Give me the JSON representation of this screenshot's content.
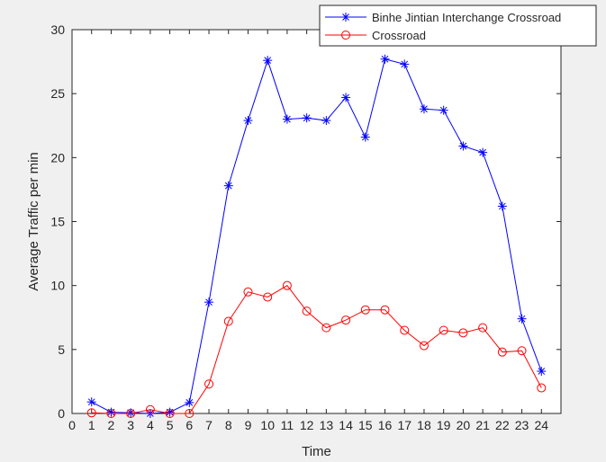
{
  "chart_data": {
    "type": "line",
    "xlabel": "Time",
    "ylabel": "Average Traffic per min",
    "xlim": [
      0,
      25
    ],
    "ylim": [
      0,
      30
    ],
    "xticks": [
      "0",
      "1",
      "2",
      "3",
      "4",
      "5",
      "6",
      "7",
      "8",
      "9",
      "10",
      "11",
      "12",
      "13",
      "14",
      "15",
      "16",
      "17",
      "18",
      "19",
      "20",
      "21",
      "22",
      "23",
      "24"
    ],
    "yticks": [
      "0",
      "5",
      "10",
      "15",
      "20",
      "25",
      "30"
    ],
    "grid": false,
    "legend_position": "top-right",
    "x": [
      1,
      2,
      3,
      4,
      5,
      6,
      7,
      8,
      9,
      10,
      11,
      12,
      13,
      14,
      15,
      16,
      17,
      18,
      19,
      20,
      21,
      22,
      23,
      24
    ],
    "series": [
      {
        "name": "Binhe Jintian Interchange Crossroad",
        "color": "#0000ff",
        "marker": "asterisk",
        "values": [
          0.9,
          0.1,
          0.05,
          0.0,
          0.1,
          0.85,
          8.7,
          17.8,
          22.9,
          27.6,
          23.0,
          23.1,
          22.9,
          24.7,
          21.6,
          27.7,
          27.3,
          23.8,
          23.7,
          20.9,
          20.4,
          16.2,
          7.4,
          3.3
        ]
      },
      {
        "name": "Crossroad",
        "color": "#ff0000",
        "marker": "circle",
        "values": [
          0.05,
          0.0,
          0.0,
          0.3,
          0.0,
          0.0,
          2.3,
          7.2,
          9.5,
          9.1,
          10.0,
          8.0,
          6.7,
          7.3,
          8.1,
          8.1,
          6.5,
          5.3,
          6.5,
          6.3,
          6.7,
          4.8,
          4.9,
          2.0
        ]
      }
    ]
  }
}
